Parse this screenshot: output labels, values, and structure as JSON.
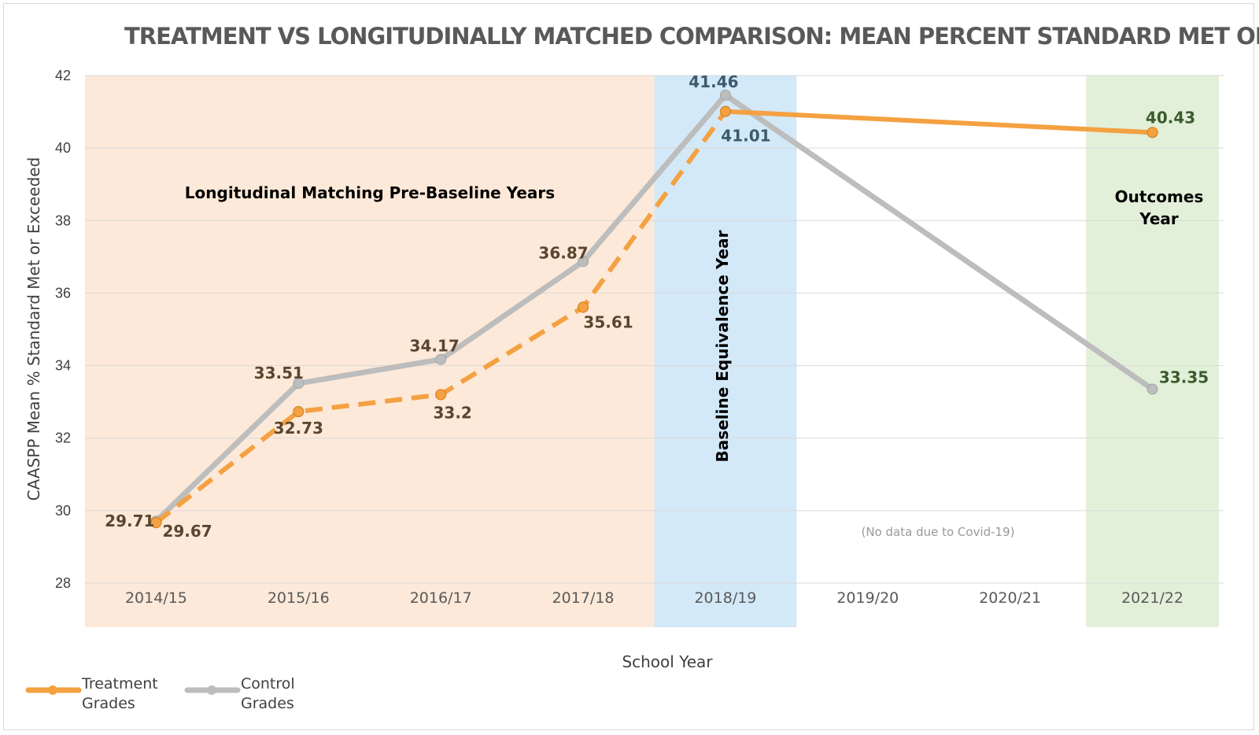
{
  "chart_data": {
    "type": "line",
    "title": "TREATMENT VS LONGITUDINALLY MATCHED COMPARISON: MEAN PERCENT STANDARD MET OR EXCEEDED",
    "xlabel": "School Year",
    "ylabel": "CAASPP Mean % Standard Met or Exceeded",
    "ylim": [
      28,
      42
    ],
    "yticks": [
      "42",
      "40",
      "38",
      "36",
      "34",
      "32",
      "30",
      "28"
    ],
    "categories": [
      "2014/15",
      "2015/16",
      "2016/17",
      "2017/18",
      "2018/19",
      "2019/20",
      "2020/21",
      "2021/22"
    ],
    "grid": true,
    "legend_position": "bottom-left",
    "series": [
      {
        "name": "Treatment Grades",
        "color": "#f4a142",
        "values": [
          29.67,
          32.73,
          33.2,
          35.61,
          41.01,
          null,
          null,
          40.43
        ],
        "labels": [
          "29.67",
          "32.73",
          "33.2",
          "35.61",
          "41.01",
          "",
          "",
          "40.43"
        ],
        "style": "dashed through 2018/19, solid after"
      },
      {
        "name": "Control Grades",
        "color": "#bdbdbd",
        "values": [
          29.71,
          33.51,
          34.17,
          36.87,
          41.46,
          null,
          null,
          33.35
        ],
        "labels": [
          "29.71",
          "33.51",
          "34.17",
          "36.87",
          "41.46",
          "",
          "",
          "33.35"
        ],
        "style": "solid"
      }
    ],
    "legend": [
      {
        "line1": "Treatment",
        "line2": "Grades",
        "color": "#f4a142"
      },
      {
        "line1": "Control",
        "line2": "Grades",
        "color": "#bdbdbd"
      }
    ],
    "zones": [
      {
        "label": "Longitudinal Matching Pre-Baseline Years",
        "color": "#fde9d9",
        "from": "2014/15",
        "to": "2017/18"
      },
      {
        "label": "Baseline Equivalence Year",
        "color": "#d3e9f8",
        "from": "2018/19",
        "to": "2018/19"
      },
      {
        "label_line1": "Outcomes",
        "label_line2": "Year",
        "color": "#e2f0d9",
        "from": "2021/22",
        "to": "2021/22"
      }
    ],
    "annotation": "(No data due to Covid-19)"
  }
}
